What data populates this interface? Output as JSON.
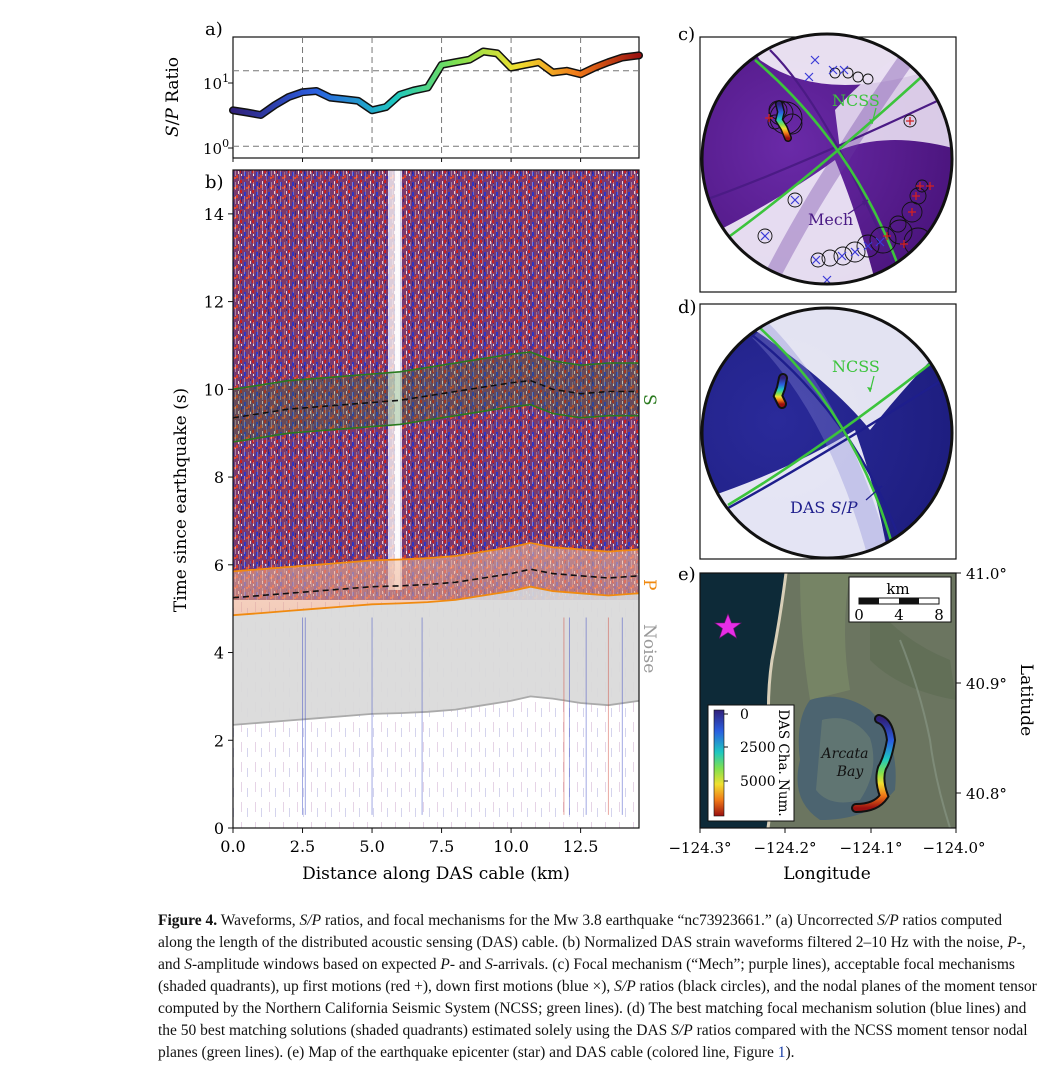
{
  "panels": {
    "a": "a)",
    "b": "b)",
    "c": "c)",
    "d": "d)",
    "e": "e)"
  },
  "panel_a": {
    "ylabel": "S/P Ratio",
    "yticks": [
      "10^0",
      "10^1"
    ]
  },
  "panel_b": {
    "ylabel": "Time since earthquake (s)",
    "xlabel": "Distance along DAS cable (km)",
    "xticks": [
      "0.0",
      "2.5",
      "5.0",
      "7.5",
      "10.0",
      "12.5"
    ],
    "yticks": [
      "0",
      "2",
      "4",
      "6",
      "8",
      "10",
      "12",
      "14"
    ],
    "window_labels": {
      "s": "S",
      "p": "P",
      "noise": "Noise"
    },
    "colors": {
      "s_window": "#2a7a1e",
      "p_window": "#f08a10",
      "noise": "#d9d9d9"
    }
  },
  "panel_c": {
    "ncss_label": "NCSS",
    "mech_label": "Mech",
    "colors": {
      "mech": "#4b1b85",
      "ncss": "#3cc43c"
    }
  },
  "panel_d": {
    "ncss_label": "NCSS",
    "das_label": "DAS S/P",
    "colors": {
      "das": "#1e1e8c",
      "ncss": "#3cc43c"
    }
  },
  "panel_e": {
    "xlabel": "Longitude",
    "ylabel": "Latitude",
    "xticks": [
      "−124.3°",
      "−124.2°",
      "−124.1°",
      "−124.0°"
    ],
    "yticks": [
      "41.0°",
      "40.9°",
      "40.8°"
    ],
    "scalebar": {
      "unit": "km",
      "ticks": [
        "0",
        "4",
        "8"
      ]
    },
    "colorbar": {
      "label": "DAS Cha. Num.",
      "ticks": [
        "0",
        "2500",
        "5000"
      ]
    },
    "place": {
      "line1": "Arcata",
      "line2": "Bay"
    },
    "colors": {
      "epicenter_star": "#e62ee6",
      "sea": "#0d2a38"
    }
  },
  "chart_data": [
    {
      "type": "line",
      "panel": "a",
      "ylabel": "S/P Ratio",
      "yscale": "log",
      "ylim": [
        0.7,
        28
      ],
      "xlim": [
        0,
        14.6
      ],
      "grid": true,
      "x": [
        0,
        0.5,
        1,
        1.5,
        2,
        2.5,
        3,
        3.5,
        4,
        4.5,
        5,
        5.5,
        6,
        6.5,
        7,
        7.5,
        8,
        8.5,
        9,
        9.5,
        10,
        10.5,
        11,
        11.5,
        12,
        12.5,
        13,
        13.5,
        14,
        14.6
      ],
      "y": [
        3.0,
        2.8,
        2.6,
        3.5,
        4.5,
        5.2,
        5.4,
        4.4,
        4.2,
        4.0,
        3.0,
        3.3,
        4.8,
        5.5,
        6.0,
        12,
        13,
        14,
        18,
        17,
        11,
        12,
        13,
        9.5,
        10,
        9,
        11,
        13,
        15,
        16
      ]
    },
    {
      "type": "line",
      "panel": "b",
      "xlabel": "Distance along DAS cable (km)",
      "ylabel": "Time since earthquake (s)",
      "xlim": [
        0,
        14.6
      ],
      "ylim": [
        0,
        15
      ],
      "x": [
        0,
        1,
        2,
        3,
        4,
        5,
        6,
        7,
        8,
        9,
        10,
        10.7,
        11.5,
        12.5,
        13.5,
        14.6
      ],
      "series": [
        {
          "name": "S",
          "values": [
            9.35,
            9.45,
            9.55,
            9.6,
            9.65,
            9.7,
            9.75,
            9.85,
            9.95,
            10.05,
            10.15,
            10.2,
            10.0,
            9.9,
            9.95,
            9.95
          ]
        },
        {
          "name": "P",
          "values": [
            5.05,
            5.1,
            5.15,
            5.2,
            5.25,
            5.3,
            5.32,
            5.35,
            5.4,
            5.5,
            5.6,
            5.7,
            5.6,
            5.55,
            5.5,
            5.55
          ]
        },
        {
          "name": "Noise",
          "values": [
            2.35,
            2.4,
            2.45,
            2.5,
            2.55,
            2.6,
            2.62,
            2.65,
            2.7,
            2.8,
            2.9,
            3.0,
            2.95,
            2.85,
            2.8,
            2.9
          ]
        }
      ]
    }
  ],
  "caption": {
    "label": "Figure 4.",
    "t1": " Waveforms, ",
    "sp": "S/P",
    "t2": " ratios, and focal mechanisms for the Mw 3.8 earthquake “nc73923661.” (a) Uncorrected ",
    "t3": " ratios computed along the length of the distributed acoustic sensing (DAS) cable. (b) Normalized DAS strain waveforms filtered 2–10 Hz with the noise, ",
    "p1": "P",
    "t4": "-, and ",
    "s1": "S",
    "t5": "-amplitude windows based on expected ",
    "t6": "- and ",
    "t7": "-arrivals. (c) Focal mechanism (“Mech”; purple lines), acceptable focal mechanisms (shaded quadrants), up first motions (red +), down first motions (blue ×), ",
    "t8": " ratios (black circles), and the nodal planes of the moment tensor computed by the Northern California Seismic System (NCSS; green lines). (d) The best matching focal mechanism solution (blue lines) and the 50 best matching solutions (shaded quadrants) estimated solely using the DAS ",
    "t9": " ratios compared with the NCSS moment tensor nodal planes (green lines). (e) Map of the earthquake epicenter (star) and DAS cable (colored line, Figure ",
    "fig_ref": "1",
    "t10": ")."
  }
}
